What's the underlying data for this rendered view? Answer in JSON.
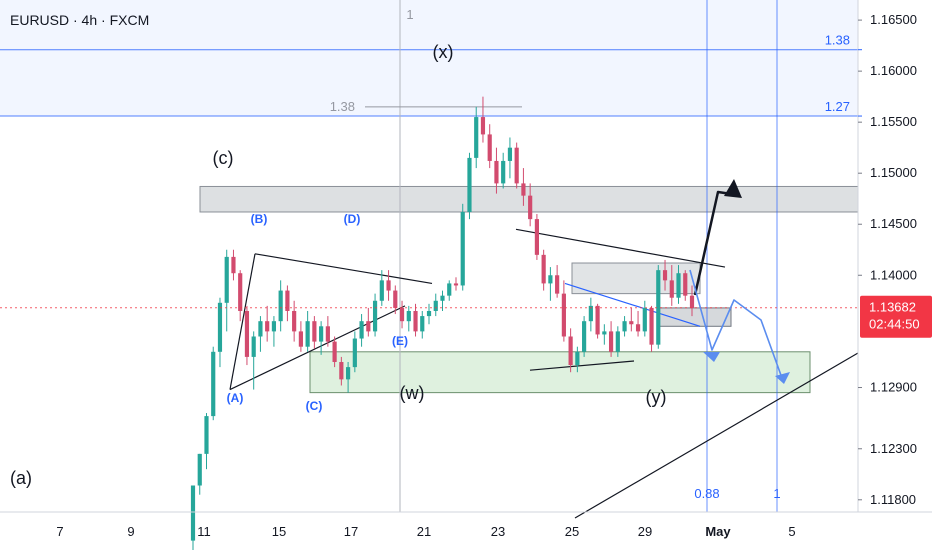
{
  "header": {
    "symbol_line": "EURUSD · 4h · FXCM"
  },
  "chart_data": {
    "type": "candlestick",
    "title": "EURUSD · 4h · FXCM",
    "ylim": [
      1.113,
      1.169
    ],
    "y_ticks": [
      "1.16500",
      "1.16000",
      "1.15500",
      "1.15000",
      "1.14500",
      "1.14000",
      "1.12900",
      "1.12300",
      "1.11800"
    ],
    "x_ticks": [
      "7",
      "9",
      "11",
      "15",
      "17",
      "21",
      "23",
      "25",
      "29",
      "May",
      "5"
    ],
    "current_price": {
      "label": "1.13682",
      "timer": "02:44:50",
      "value": 1.13682
    },
    "colors": {
      "up": "#26a69a",
      "down": "#d24b6e",
      "blue": "#2962ff",
      "price": "#f23645"
    },
    "fib_horizontal": [
      {
        "label": "1.38",
        "value": 1.1621
      },
      {
        "label": "1.27",
        "value": 1.1556
      }
    ],
    "fib_vertical": [
      {
        "label": "0.88",
        "category": "May-1"
      },
      {
        "label": "1",
        "category": "May+1"
      }
    ],
    "vertical_marker": {
      "label": "1"
    },
    "fib_small_label": "1.38",
    "wave_labels": {
      "x": "(x)",
      "c": "(c)",
      "w": "(w)",
      "y": "(y)",
      "a": "(a)",
      "A": "(A)",
      "B": "(B)",
      "C": "(C)",
      "D": "(D)",
      "E": "(E)"
    },
    "zones": [
      {
        "name": "resistance-zone",
        "from": 1.1462,
        "to": 1.1487
      },
      {
        "name": "support-zone",
        "from": 1.1285,
        "to": 1.1325
      }
    ],
    "candles": [
      [
        1.114,
        1.1194,
        1.112,
        1.1194
      ],
      [
        1.1194,
        1.1225,
        1.1185,
        1.1225
      ],
      [
        1.1225,
        1.1265,
        1.121,
        1.1262
      ],
      [
        1.1262,
        1.133,
        1.1258,
        1.1325
      ],
      [
        1.1325,
        1.1378,
        1.131,
        1.1373
      ],
      [
        1.1373,
        1.1425,
        1.1345,
        1.1418
      ],
      [
        1.1418,
        1.1425,
        1.1395,
        1.1402
      ],
      [
        1.1402,
        1.1405,
        1.1355,
        1.1365
      ],
      [
        1.1365,
        1.137,
        1.1312,
        1.132
      ],
      [
        1.132,
        1.1345,
        1.1288,
        1.134
      ],
      [
        1.134,
        1.136,
        1.1325,
        1.1355
      ],
      [
        1.1355,
        1.137,
        1.1335,
        1.1345
      ],
      [
        1.1345,
        1.136,
        1.133,
        1.1355
      ],
      [
        1.1355,
        1.1395,
        1.1345,
        1.1385
      ],
      [
        1.1385,
        1.139,
        1.1355,
        1.1365
      ],
      [
        1.1365,
        1.1375,
        1.1335,
        1.1345
      ],
      [
        1.1345,
        1.1355,
        1.1325,
        1.133
      ],
      [
        1.133,
        1.1365,
        1.1325,
        1.1355
      ],
      [
        1.1355,
        1.136,
        1.1328,
        1.1335
      ],
      [
        1.1335,
        1.1355,
        1.1322,
        1.135
      ],
      [
        1.135,
        1.136,
        1.133,
        1.1335
      ],
      [
        1.1335,
        1.134,
        1.131,
        1.1315
      ],
      [
        1.1315,
        1.132,
        1.1292,
        1.1298
      ],
      [
        1.1298,
        1.1315,
        1.1285,
        1.131
      ],
      [
        1.131,
        1.1345,
        1.1305,
        1.1338
      ],
      [
        1.1338,
        1.1362,
        1.133,
        1.1355
      ],
      [
        1.1355,
        1.1368,
        1.134,
        1.1345
      ],
      [
        1.1345,
        1.1382,
        1.134,
        1.1375
      ],
      [
        1.1375,
        1.1405,
        1.137,
        1.1395
      ],
      [
        1.1395,
        1.1405,
        1.1375,
        1.1385
      ],
      [
        1.1385,
        1.139,
        1.1362,
        1.1368
      ],
      [
        1.1368,
        1.1375,
        1.1348,
        1.1355
      ],
      [
        1.1355,
        1.137,
        1.1345,
        1.1365
      ],
      [
        1.1365,
        1.1372,
        1.134,
        1.1345
      ],
      [
        1.1345,
        1.1365,
        1.1338,
        1.136
      ],
      [
        1.136,
        1.1372,
        1.1352,
        1.1365
      ],
      [
        1.1365,
        1.1382,
        1.136,
        1.1375
      ],
      [
        1.1375,
        1.1385,
        1.1365,
        1.138
      ],
      [
        1.138,
        1.1395,
        1.1375,
        1.1392
      ],
      [
        1.1392,
        1.1398,
        1.1385,
        1.139
      ],
      [
        1.139,
        1.147,
        1.1385,
        1.1462
      ],
      [
        1.1462,
        1.152,
        1.1455,
        1.1515
      ],
      [
        1.1515,
        1.1565,
        1.1505,
        1.1555
      ],
      [
        1.1555,
        1.1575,
        1.153,
        1.1538
      ],
      [
        1.1538,
        1.1548,
        1.1505,
        1.1512
      ],
      [
        1.1512,
        1.1525,
        1.148,
        1.149
      ],
      [
        1.149,
        1.152,
        1.1485,
        1.1512
      ],
      [
        1.1512,
        1.1535,
        1.1495,
        1.1525
      ],
      [
        1.1525,
        1.153,
        1.1485,
        1.149
      ],
      [
        1.149,
        1.1505,
        1.1468,
        1.1478
      ],
      [
        1.1478,
        1.149,
        1.1448,
        1.1455
      ],
      [
        1.1455,
        1.146,
        1.1415,
        1.142
      ],
      [
        1.142,
        1.1425,
        1.1385,
        1.1392
      ],
      [
        1.1392,
        1.1408,
        1.1375,
        1.14
      ],
      [
        1.14,
        1.141,
        1.1378,
        1.1382
      ],
      [
        1.1382,
        1.1395,
        1.1335,
        1.134
      ],
      [
        1.134,
        1.1348,
        1.1305,
        1.1312
      ],
      [
        1.1312,
        1.133,
        1.1305,
        1.1325
      ],
      [
        1.1325,
        1.136,
        1.132,
        1.1355
      ],
      [
        1.1355,
        1.1378,
        1.1345,
        1.137
      ],
      [
        1.137,
        1.1372,
        1.1338,
        1.1342
      ],
      [
        1.1342,
        1.1352,
        1.1332,
        1.1345
      ],
      [
        1.1345,
        1.1355,
        1.132,
        1.1325
      ],
      [
        1.1325,
        1.135,
        1.132,
        1.1345
      ],
      [
        1.1345,
        1.136,
        1.134,
        1.1355
      ],
      [
        1.1355,
        1.1368,
        1.1345,
        1.1352
      ],
      [
        1.1352,
        1.1365,
        1.134,
        1.1345
      ],
      [
        1.1345,
        1.1375,
        1.134,
        1.1368
      ],
      [
        1.1368,
        1.137,
        1.1325,
        1.1332
      ],
      [
        1.1332,
        1.141,
        1.1328,
        1.1405
      ],
      [
        1.1405,
        1.1415,
        1.1385,
        1.1395
      ],
      [
        1.1395,
        1.141,
        1.137,
        1.1378
      ],
      [
        1.1378,
        1.141,
        1.1372,
        1.1402
      ],
      [
        1.1402,
        1.1405,
        1.1375,
        1.138
      ],
      [
        1.138,
        1.139,
        1.136,
        1.1368
      ]
    ]
  }
}
